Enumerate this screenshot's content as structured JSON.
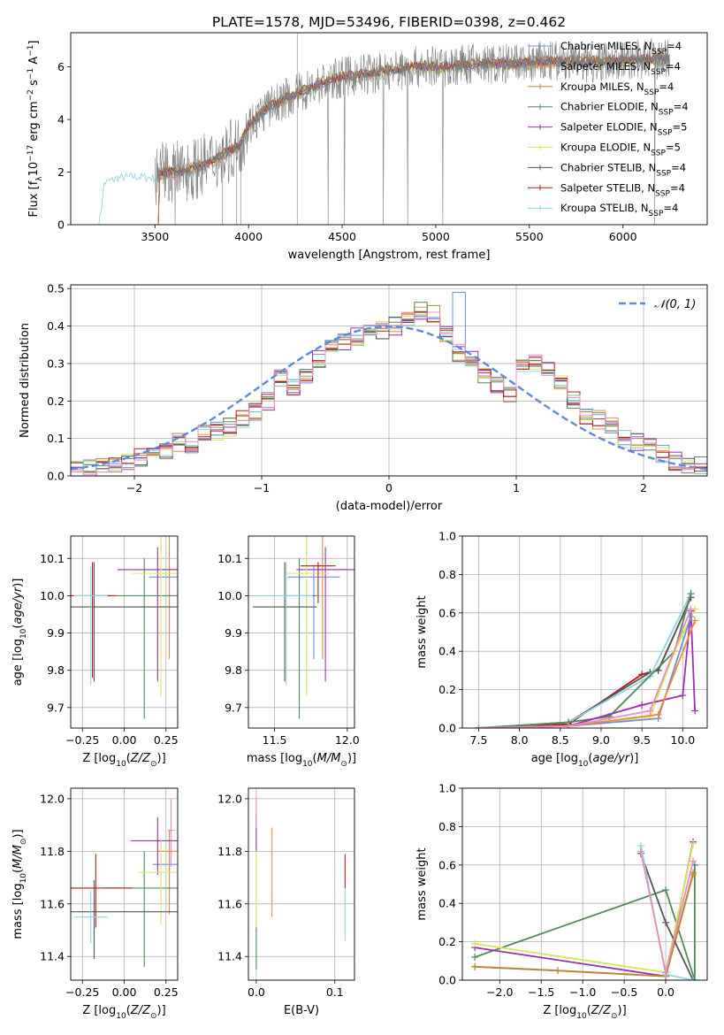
{
  "figure": {
    "title": "PLATE=1578, MJD=53496, FIBERID=0398, z=0.462"
  },
  "colors": {
    "Chabrier MILES": "#6f8fd8",
    "Salpeter MILES": "#f08a3c",
    "Kroupa MILES": "#b4883c",
    "Chabrier ELODIE": "#4f8a5a",
    "Salpeter ELODIE": "#9b2fae",
    "Kroupa ELODIE": "#d6e65a",
    "Chabrier STELIB": "#555555",
    "Salpeter STELIB": "#b31b1b",
    "Kroupa STELIB": "#8fd3e0",
    "pink": "#e88fb8",
    "normal_curve": "#5b8bd8"
  },
  "chart_data": [
    {
      "id": "spectrum",
      "type": "line",
      "xlabel": "wavelength [Angstrom, rest frame]",
      "ylabel": "Flux [f_λ10^-17 erg cm^-2 s^-1 A^-1]",
      "xlim": [
        3050,
        6450
      ],
      "ylim": [
        0,
        7.3
      ],
      "xticks": [
        3500,
        4000,
        4500,
        5000,
        5500,
        6000
      ],
      "yticks": [
        0,
        2,
        4,
        6
      ],
      "grid": false,
      "legend_position": "top-right",
      "legend": [
        {
          "label": "Chabrier MILES, N_SSP=4",
          "color_key": "Chabrier MILES"
        },
        {
          "label": "Salpeter MILES, N_SSP=4",
          "color_key": "Salpeter MILES"
        },
        {
          "label": "Kroupa MILES, N_SSP=4",
          "color_key": "Kroupa MILES"
        },
        {
          "label": "Chabrier ELODIE, N_SSP=4",
          "color_key": "Chabrier ELODIE"
        },
        {
          "label": "Salpeter ELODIE, N_SSP=5",
          "color_key": "Salpeter ELODIE"
        },
        {
          "label": "Kroupa ELODIE, N_SSP=5",
          "color_key": "Kroupa ELODIE"
        },
        {
          "label": "Chabrier STELIB, N_SSP=4",
          "color_key": "Chabrier STELIB"
        },
        {
          "label": "Salpeter STELIB, N_SSP=4",
          "color_key": "Salpeter STELIB"
        },
        {
          "label": "Kroupa STELIB, N_SSP=4",
          "color_key": "Kroupa STELIB"
        }
      ],
      "data_envelope": {
        "x": [
          3200,
          3230,
          3300,
          3400,
          3500,
          3600,
          3700,
          3800,
          3900,
          3950,
          4000,
          4100,
          4200,
          4300,
          4400,
          4500,
          4600,
          4700,
          4800,
          4900,
          5000,
          5200,
          5400,
          5600,
          5800,
          6000,
          6200,
          6250
        ],
        "y": [
          0.0,
          1.7,
          1.9,
          1.95,
          1.9,
          2.0,
          2.1,
          2.4,
          2.8,
          3.0,
          3.8,
          4.4,
          4.8,
          5.1,
          5.4,
          5.6,
          5.7,
          5.8,
          5.9,
          6.0,
          6.0,
          6.1,
          6.1,
          6.2,
          6.2,
          6.25,
          6.3,
          6.3
        ]
      }
    },
    {
      "id": "residuals",
      "type": "histogram",
      "xlabel": "(data-model)/error",
      "ylabel": "Normed distribution",
      "xlim": [
        -2.5,
        2.5
      ],
      "ylim": [
        0,
        0.51
      ],
      "xticks": [
        -2,
        -1,
        0,
        1,
        2
      ],
      "yticks": [
        0.0,
        0.1,
        0.2,
        0.3,
        0.4,
        0.5
      ],
      "grid": true,
      "legend_position": "top-right",
      "legend_label": "𝒩(0, 1)",
      "bin_edges_start": -2.5,
      "bin_width": 0.1,
      "histogram_values": [
        0.02,
        0.02,
        0.03,
        0.03,
        0.04,
        0.05,
        0.06,
        0.07,
        0.09,
        0.08,
        0.12,
        0.12,
        0.13,
        0.15,
        0.17,
        0.2,
        0.26,
        0.24,
        0.27,
        0.31,
        0.35,
        0.36,
        0.37,
        0.38,
        0.39,
        0.4,
        0.42,
        0.44,
        0.43,
        0.38,
        0.33,
        0.31,
        0.27,
        0.24,
        0.22,
        0.3,
        0.3,
        0.28,
        0.25,
        0.2,
        0.16,
        0.15,
        0.13,
        0.1,
        0.09,
        0.08,
        0.06,
        0.04,
        0.03,
        0.03
      ]
    },
    {
      "id": "z_age",
      "type": "errorbar",
      "xlabel": "Z [log10(Z/Z⊙)]",
      "ylabel": "age  [log10(age/yr)]",
      "xlim": [
        -0.32,
        0.32
      ],
      "ylim": [
        9.645,
        10.16
      ],
      "xticks": [
        -0.25,
        0.0,
        0.25
      ],
      "xticklabels": [
        "−0.25",
        "0.00",
        "0.25"
      ],
      "yticks": [
        9.7,
        9.8,
        9.9,
        10.0,
        10.1
      ],
      "grid": true,
      "points": [
        {
          "c": "Chabrier MILES",
          "x": 0.27,
          "xerr": 0.12,
          "y": 10.05,
          "yerr": [
            0.15,
            0.03
          ]
        },
        {
          "c": "Salpeter MILES",
          "x": 0.27,
          "xerr": 0.08,
          "y": 10.07,
          "yerr": [
            0.24,
            0.09
          ]
        },
        {
          "c": "Chabrier ELODIE",
          "x": 0.12,
          "xerr": 0.3,
          "y": 10.0,
          "yerr": [
            0.33,
            0.1
          ]
        },
        {
          "c": "Salpeter ELODIE",
          "x": 0.2,
          "xerr": 0.24,
          "y": 10.07,
          "yerr": [
            0.3,
            0.06
          ]
        },
        {
          "c": "Kroupa ELODIE",
          "x": 0.22,
          "xerr": 0.18,
          "y": 10.06,
          "yerr": [
            0.33,
            0.1
          ]
        },
        {
          "c": "Chabrier STELIB",
          "x": -0.18,
          "xerr": 0.5,
          "y": 9.97,
          "yerr": [
            0.2,
            0.12
          ]
        },
        {
          "c": "Salpeter STELIB",
          "x": -0.19,
          "xerr": 0.14,
          "y": 10.0,
          "yerr": [
            0.22,
            0.09
          ]
        },
        {
          "c": "Kroupa STELIB",
          "x": -0.2,
          "xerr": 0.1,
          "y": 10.0,
          "yerr": [
            0.24,
            0.08
          ]
        }
      ]
    },
    {
      "id": "mass_age",
      "type": "errorbar",
      "xlabel": "mass [log10(M/M⊙)]",
      "ylabel": "",
      "xlim": [
        11.32,
        12.05
      ],
      "ylim": [
        9.645,
        10.16
      ],
      "xticks": [
        11.5,
        12.0
      ],
      "yticks": [
        9.7,
        9.8,
        9.9,
        10.0,
        10.1
      ],
      "grid": true,
      "points": [
        {
          "c": "Chabrier MILES",
          "x": 11.77,
          "xerr": 0.18,
          "y": 10.05,
          "yerr": [
            0.22,
            0.03
          ]
        },
        {
          "c": "Salpeter MILES",
          "x": 11.83,
          "xerr": 0.17,
          "y": 10.07,
          "yerr": [
            0.24,
            0.09
          ]
        },
        {
          "c": "Chabrier ELODIE",
          "x": 11.67,
          "xerr": 0.12,
          "y": 10.0,
          "yerr": [
            0.33,
            0.1
          ]
        },
        {
          "c": "Salpeter ELODIE",
          "x": 11.85,
          "xerr": 0.2,
          "y": 10.07,
          "yerr": [
            0.3,
            0.06
          ]
        },
        {
          "c": "Kroupa ELODIE",
          "x": 11.72,
          "xerr": 0.15,
          "y": 10.06,
          "yerr": [
            0.33,
            0.11
          ]
        },
        {
          "c": "Chabrier STELIB",
          "x": 11.57,
          "xerr": 0.22,
          "y": 9.97,
          "yerr": [
            0.2,
            0.12
          ]
        },
        {
          "c": "Salpeter STELIB",
          "x": 11.8,
          "xerr": 0.12,
          "y": 10.08,
          "yerr": [
            0.1,
            0.01
          ]
        },
        {
          "c": "Kroupa STELIB",
          "x": 11.58,
          "xerr": 0.18,
          "y": 10.0,
          "yerr": [
            0.24,
            0.09
          ]
        }
      ]
    },
    {
      "id": "age_weight",
      "type": "line",
      "xlabel": "age  [log10(age/yr)]",
      "ylabel": "mass weight",
      "xlim": [
        7.3,
        10.3
      ],
      "ylim": [
        0,
        1.0
      ],
      "xticks": [
        7.5,
        8.0,
        8.5,
        9.0,
        9.5,
        10.0
      ],
      "yticks": [
        0.0,
        0.2,
        0.4,
        0.6,
        0.8,
        1.0
      ],
      "grid": true,
      "series": [
        {
          "c": "Salpeter STELIB",
          "x": [
            7.5,
            8.6,
            9.5,
            9.7,
            10.1
          ],
          "y": [
            0.0,
            0.02,
            0.28,
            0.3,
            0.68
          ]
        },
        {
          "c": "Chabrier STELIB",
          "x": [
            7.5,
            8.6,
            9.6,
            9.7,
            10.1
          ],
          "y": [
            0.0,
            0.03,
            0.29,
            0.3,
            0.68
          ]
        },
        {
          "c": "Kroupa STELIB",
          "x": [
            7.5,
            8.6,
            9.6,
            10.1
          ],
          "y": [
            0.0,
            0.03,
            0.27,
            0.7
          ]
        },
        {
          "c": "Chabrier ELODIE",
          "x": [
            7.5,
            8.6,
            9.1,
            9.9,
            10.1
          ],
          "y": [
            0.0,
            0.03,
            0.06,
            0.4,
            0.7
          ]
        },
        {
          "c": "Kroupa ELODIE",
          "x": [
            7.5,
            8.6,
            9.6,
            9.9,
            10.15
          ],
          "y": [
            0.0,
            0.01,
            0.06,
            0.4,
            0.62
          ]
        },
        {
          "c": "Salpeter ELODIE",
          "x": [
            7.5,
            8.6,
            9.5,
            10.0,
            10.1,
            10.15
          ],
          "y": [
            0.0,
            0.01,
            0.12,
            0.17,
            0.61,
            0.09
          ]
        },
        {
          "c": "Chabrier MILES",
          "x": [
            7.5,
            8.6,
            9.7,
            10.1
          ],
          "y": [
            0.0,
            0.01,
            0.05,
            0.58
          ]
        },
        {
          "c": "Salpeter MILES",
          "x": [
            7.5,
            8.6,
            9.7,
            10.15
          ],
          "y": [
            0.0,
            0.01,
            0.07,
            0.56
          ]
        },
        {
          "c": "pink",
          "x": [
            7.5,
            8.6,
            9.6,
            10.1
          ],
          "y": [
            0.0,
            0.01,
            0.09,
            0.62
          ]
        }
      ]
    },
    {
      "id": "z_mass",
      "type": "errorbar",
      "xlabel": "Z [log10(Z/Z⊙)]",
      "ylabel": "mass [log10(M/M⊙)]",
      "xlim": [
        -0.32,
        0.32
      ],
      "ylim": [
        11.31,
        12.04
      ],
      "xticks": [
        -0.25,
        0.0,
        0.25
      ],
      "xticklabels": [
        "−0.25",
        "0.00",
        "0.25"
      ],
      "yticks": [
        11.4,
        11.6,
        11.8,
        12.0
      ],
      "grid": true,
      "points": [
        {
          "c": "Chabrier MILES",
          "x": 0.27,
          "xerr": 0.1,
          "y": 11.75,
          "yerr": [
            0.12,
            0.08
          ]
        },
        {
          "c": "Salpeter MILES",
          "x": 0.27,
          "xerr": 0.07,
          "y": 11.8,
          "yerr": [
            0.24,
            0.08
          ]
        },
        {
          "c": "Chabrier ELODIE",
          "x": 0.12,
          "xerr": 0.25,
          "y": 11.66,
          "yerr": [
            0.3,
            0.14
          ]
        },
        {
          "c": "Salpeter ELODIE",
          "x": 0.2,
          "xerr": 0.16,
          "y": 11.84,
          "yerr": [
            0.13,
            0.09
          ]
        },
        {
          "c": "Kroupa ELODIE",
          "x": 0.22,
          "xerr": 0.14,
          "y": 11.72,
          "yerr": [
            0.2,
            0.12
          ]
        },
        {
          "c": "Chabrier STELIB",
          "x": -0.18,
          "xerr": 0.5,
          "y": 11.57,
          "yerr": [
            0.18,
            0.12
          ]
        },
        {
          "c": "Salpeter STELIB",
          "x": -0.17,
          "xerr": 0.22,
          "y": 11.66,
          "yerr": [
            0.15,
            0.13
          ]
        },
        {
          "c": "Kroupa STELIB",
          "x": -0.2,
          "xerr": 0.1,
          "y": 11.55,
          "yerr": [
            0.1,
            0.1
          ]
        },
        {
          "c": "pink",
          "x": 0.28,
          "xerr": 0.02,
          "y": 11.88,
          "yerr": [
            0.14,
            0.12
          ]
        }
      ]
    },
    {
      "id": "ebv_mass",
      "type": "errorbar",
      "xlabel": "E(B-V)",
      "ylabel": "",
      "xlim": [
        -0.01,
        0.125
      ],
      "ylim": [
        11.31,
        12.04
      ],
      "xticks": [
        0.0,
        0.1
      ],
      "yticks": [
        11.4,
        11.6,
        11.8,
        12.0
      ],
      "grid": true,
      "points": [
        {
          "c": "Chabrier ELODIE",
          "x": 0.0,
          "xerr": 0,
          "y": 11.45,
          "yerr": [
            0.1,
            0.06
          ]
        },
        {
          "c": "Kroupa ELODIE",
          "x": 0.0,
          "xerr": 0,
          "y": 11.68,
          "yerr": [
            0.16,
            0.15
          ]
        },
        {
          "c": "Salpeter ELODIE",
          "x": 0.0,
          "xerr": 0,
          "y": 11.88,
          "yerr": [
            0.08,
            0.06
          ]
        },
        {
          "c": "pink",
          "x": 0.0,
          "xerr": 0,
          "y": 11.95,
          "yerr": [
            0.06,
            0.06
          ]
        },
        {
          "c": "Salpeter MILES",
          "x": 0.02,
          "xerr": 0,
          "y": 11.72,
          "yerr": [
            0.17,
            0.17
          ]
        },
        {
          "c": "Salpeter STELIB",
          "x": 0.113,
          "xerr": 0,
          "y": 11.73,
          "yerr": [
            0.07,
            0.06
          ]
        },
        {
          "c": "Kroupa STELIB",
          "x": 0.113,
          "xerr": 0,
          "y": 11.56,
          "yerr": [
            0.1,
            0.1
          ]
        }
      ]
    },
    {
      "id": "z_weight",
      "type": "line",
      "xlabel": "Z [log10(Z/Z⊙)]",
      "ylabel": "mass weight",
      "xlim": [
        -2.45,
        0.5
      ],
      "ylim": [
        0,
        1.0
      ],
      "xticks": [
        -2.0,
        -1.5,
        -1.0,
        -0.5,
        0.0
      ],
      "xticklabels": [
        "−2.0",
        "−1.5",
        "−1.0",
        "−0.5",
        "0.0"
      ],
      "yticks": [
        0.0,
        0.2,
        0.4,
        0.6,
        0.8,
        1.0
      ],
      "grid": true,
      "series": [
        {
          "c": "Chabrier ELODIE",
          "x": [
            -2.3,
            0.0,
            0.35,
            0.35
          ],
          "y": [
            0.12,
            0.47,
            0.0,
            0.6
          ]
        },
        {
          "c": "Salpeter ELODIE",
          "x": [
            -2.3,
            0.0,
            0.33
          ],
          "y": [
            0.17,
            0.02,
            0.72
          ]
        },
        {
          "c": "Kroupa ELODIE",
          "x": [
            -2.3,
            0.0,
            0.33
          ],
          "y": [
            0.19,
            0.04,
            0.71
          ]
        },
        {
          "c": "Salpeter MILES",
          "x": [
            -2.3,
            -1.3,
            0.0,
            0.33
          ],
          "y": [
            0.07,
            0.05,
            0.02,
            0.55
          ]
        },
        {
          "c": "Kroupa MILES",
          "x": [
            -2.3,
            -1.3,
            0.0,
            0.33
          ],
          "y": [
            0.07,
            0.05,
            0.02,
            0.56
          ]
        },
        {
          "c": "Chabrier STELIB",
          "x": [
            -0.3,
            0.0,
            0.33
          ],
          "y": [
            0.66,
            0.3,
            0.0
          ]
        },
        {
          "c": "Kroupa STELIB",
          "x": [
            -0.3,
            0.0,
            0.33
          ],
          "y": [
            0.7,
            0.03,
            0.0
          ]
        },
        {
          "c": "pink",
          "x": [
            -0.3,
            0.0,
            0.33
          ],
          "y": [
            0.67,
            0.04,
            0.62
          ]
        }
      ]
    }
  ]
}
